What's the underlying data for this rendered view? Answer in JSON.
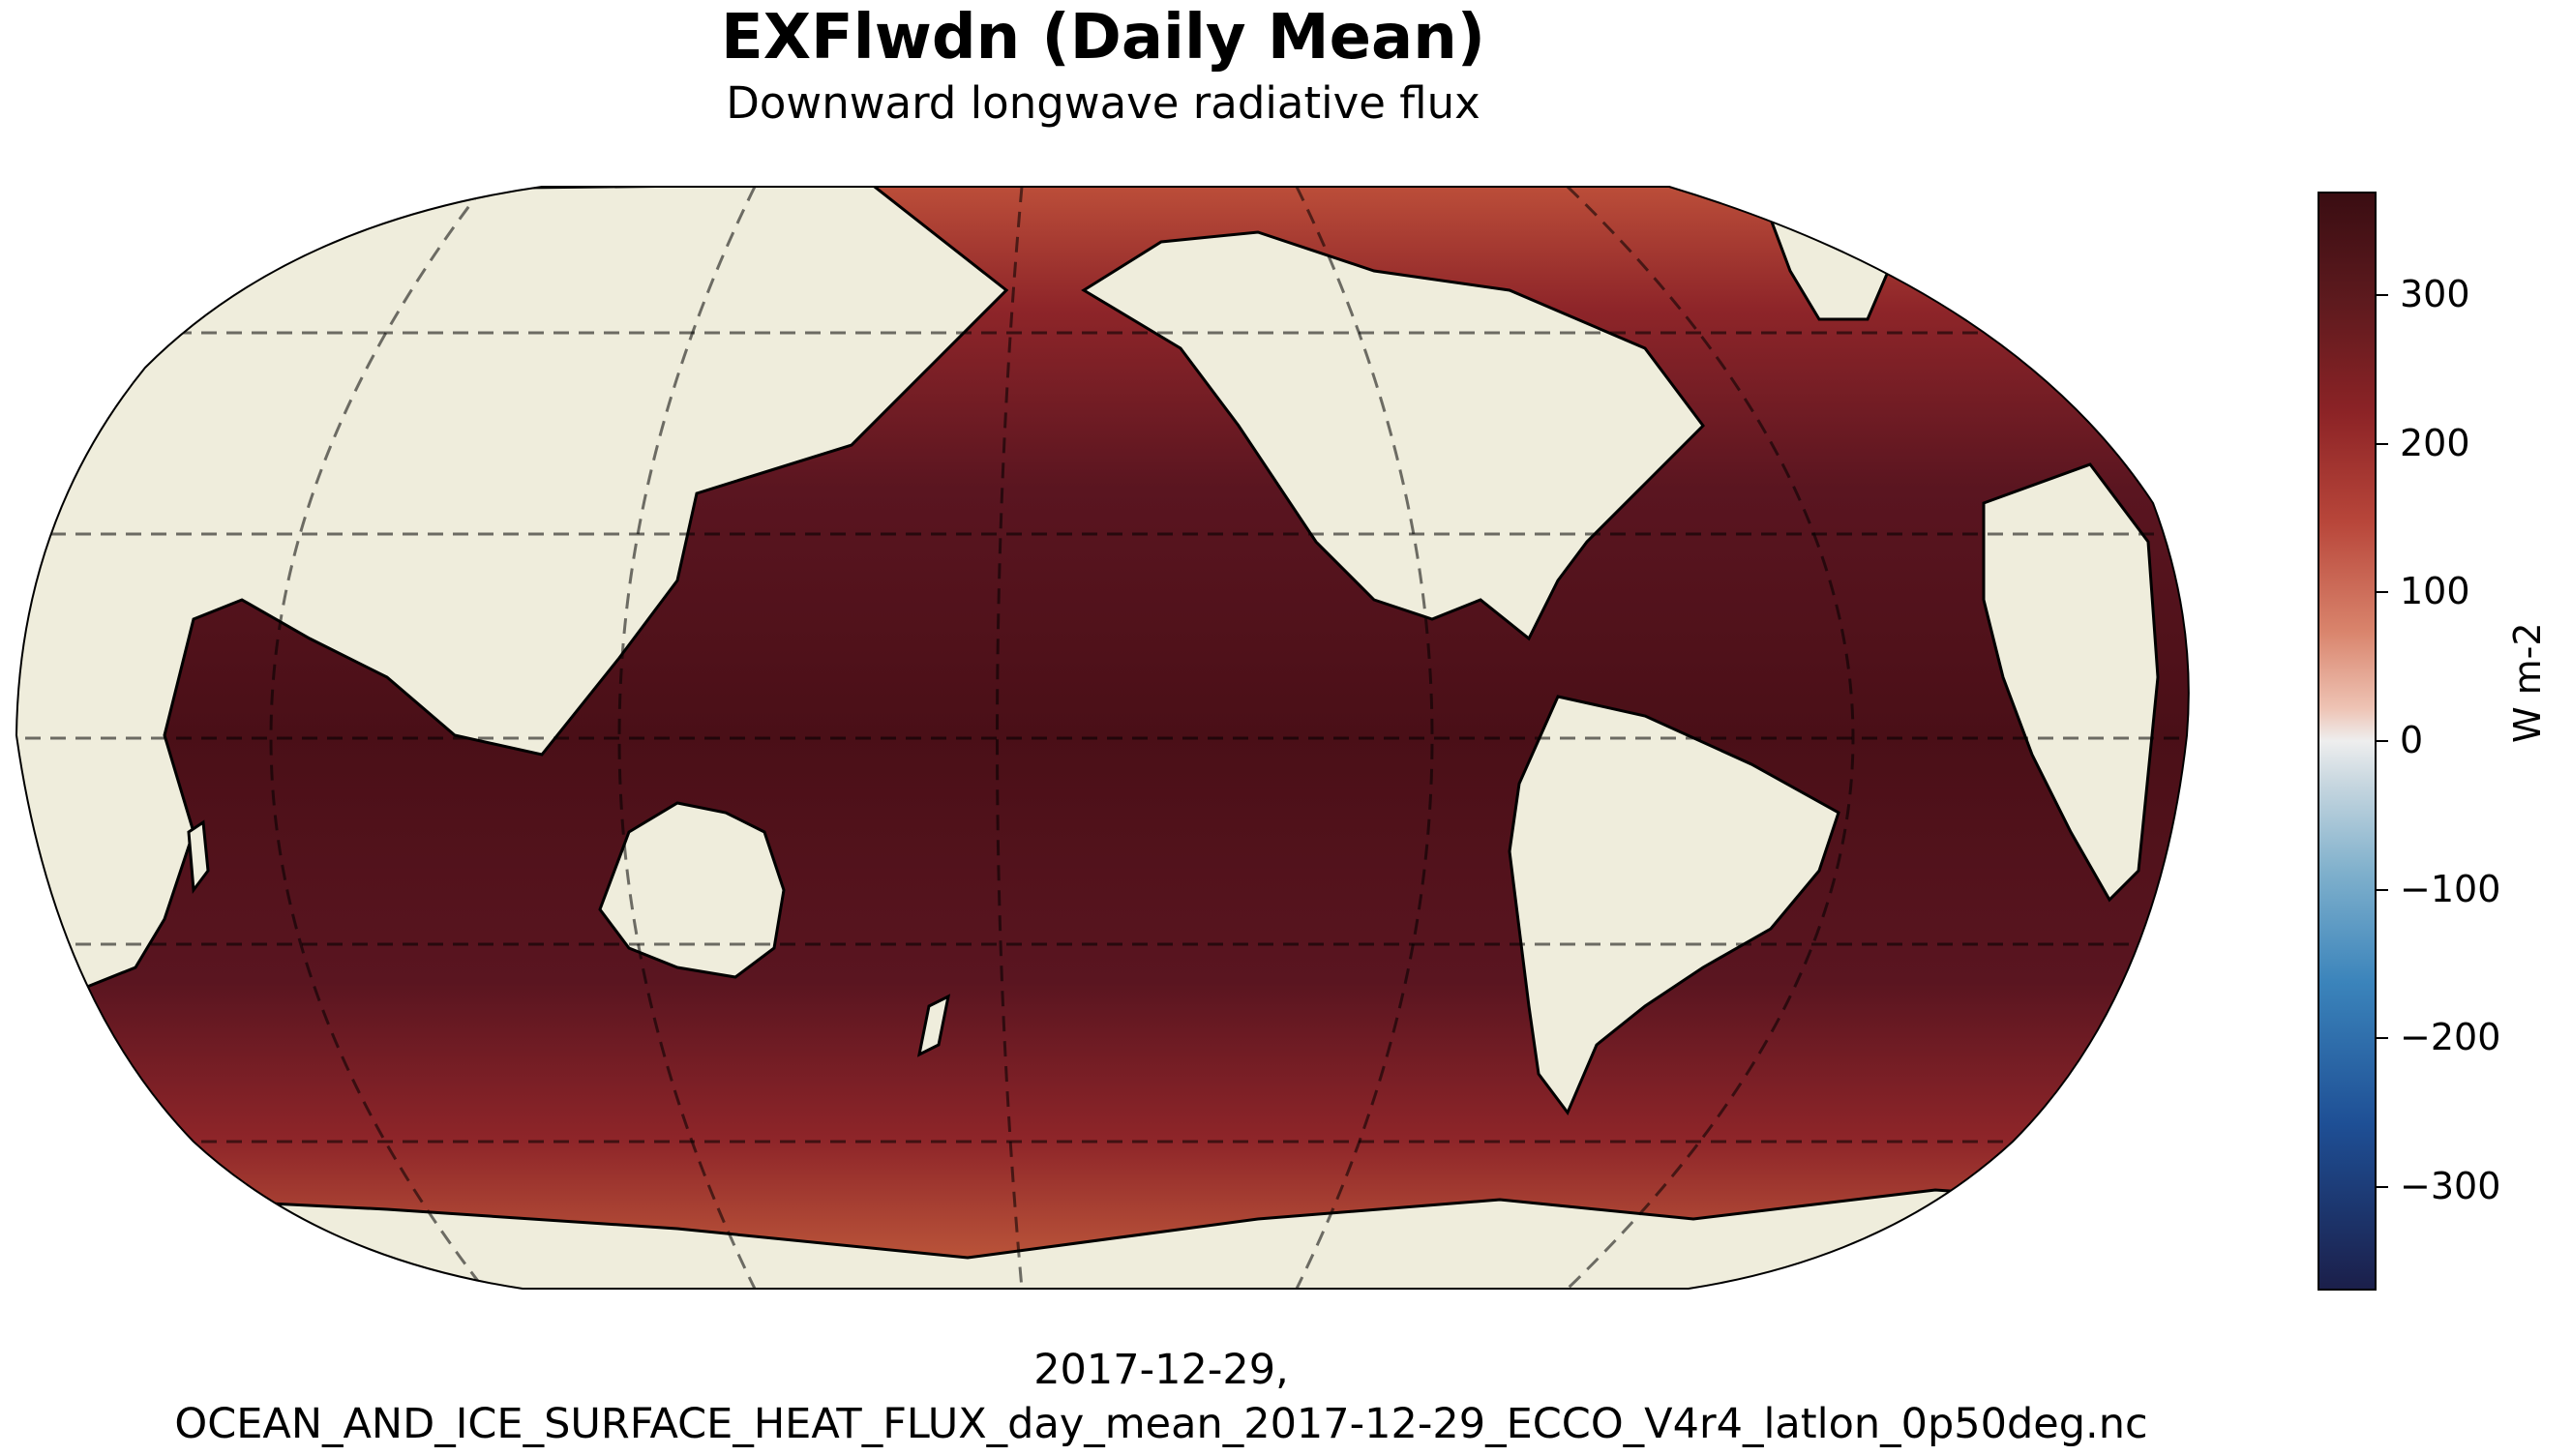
{
  "figure": {
    "title": "EXFlwdn (Daily Mean)",
    "subtitle": "Downward longwave radiative flux",
    "footer_line1": "2017-12-29,",
    "footer_line2": "OCEAN_AND_ICE_SURFACE_HEAT_FLUX_day_mean_2017-12-29_ECCO_V4r4_latlon_0p50deg.nc"
  },
  "map": {
    "projection": "Robinson",
    "central_longitude": -150,
    "ocean_color": "#4a0f17",
    "land_color": "#efeddc",
    "coastline_color": "#000000",
    "gridlines": {
      "style": "dashed",
      "latitudes": [
        -60,
        -30,
        0,
        30,
        60
      ],
      "longitudes": [
        -120,
        -60,
        0,
        60,
        120,
        180
      ]
    }
  },
  "colorbar": {
    "label": "W m-2",
    "range": [
      -370,
      370
    ],
    "ticks": [
      {
        "value": 300,
        "label": "300"
      },
      {
        "value": 200,
        "label": "200"
      },
      {
        "value": 100,
        "label": "100"
      },
      {
        "value": 0,
        "label": "0"
      },
      {
        "value": -100,
        "label": "−100"
      },
      {
        "value": -200,
        "label": "−200"
      },
      {
        "value": -300,
        "label": "−300"
      }
    ],
    "colormap": "balance (diverging, dark blue to dark red)"
  }
}
